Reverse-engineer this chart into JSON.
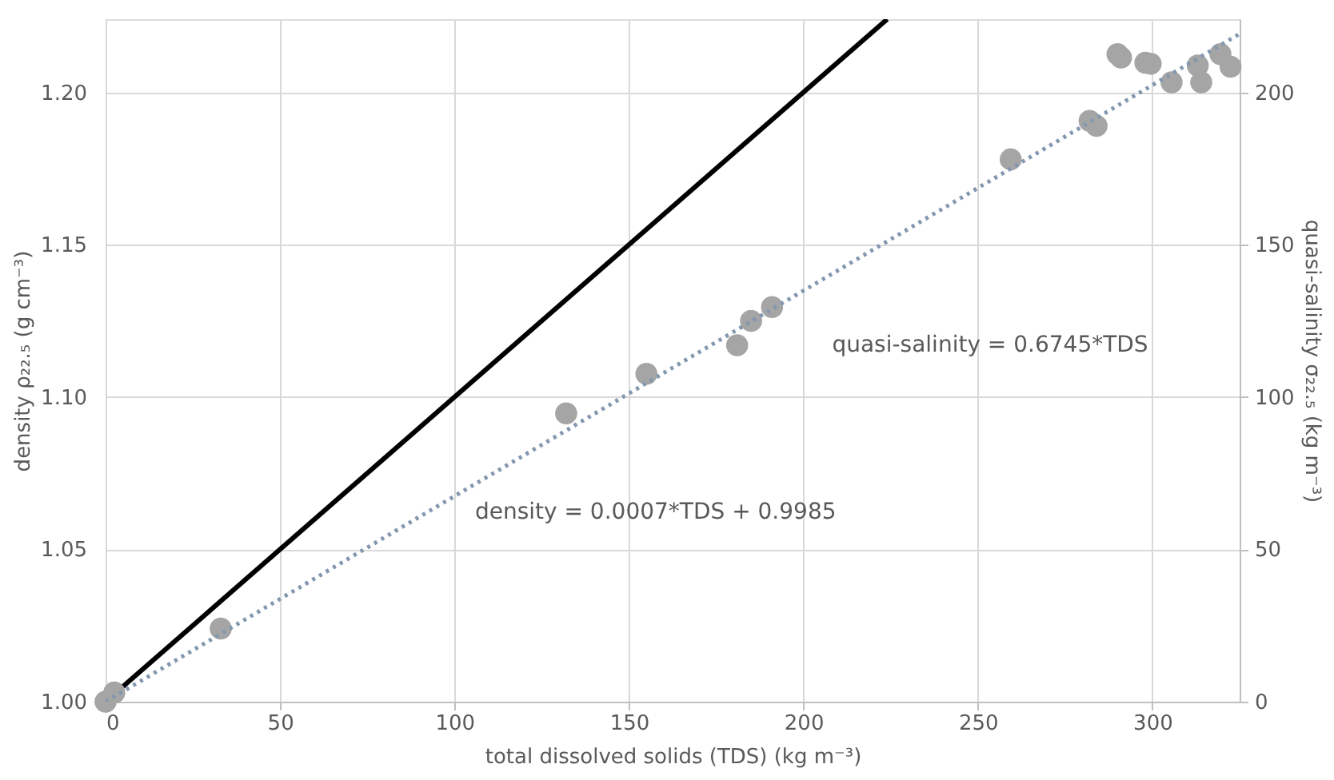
{
  "chart_data": {
    "type": "scatter",
    "xlabel": "total dissolved solids (TDS) (kg m⁻³)",
    "ylabel": "density ρ₂₂.₅ (g cm⁻³)",
    "y2label": "quasi-salinity σ₂₂.₅ (kg m⁻³)",
    "xlim": [
      0,
      325
    ],
    "xticks": [
      0,
      50,
      100,
      150,
      200,
      250,
      300
    ],
    "ylim": [
      1.0,
      1.224
    ],
    "yticks": [
      {
        "value": 1.0,
        "label": "1.00"
      },
      1.05,
      {
        "value": 1.1,
        "label": "1.10"
      },
      1.15,
      {
        "value": 1.2,
        "label": "1.20"
      }
    ],
    "y2lim": [
      0,
      224
    ],
    "y2ticks": [
      0,
      50,
      100,
      150,
      200
    ],
    "grid": true,
    "series": [
      {
        "type": "line",
        "color": "#000000",
        "line_style": "solid",
        "marker": "none",
        "x": [
          0,
          224
        ],
        "values": [
          1.0,
          1.224
        ]
      },
      {
        "type": "line",
        "axis": "y2",
        "color": "#8497b0",
        "line_style": "dotted",
        "marker": "none",
        "x": [
          0,
          325
        ],
        "values": [
          0,
          219.2
        ]
      },
      {
        "color": "#a5a5a5",
        "marker": "circle",
        "x": [
          0,
          2.5,
          33,
          132,
          155,
          181,
          185,
          191,
          259.4,
          282,
          284,
          290,
          291,
          298,
          299.5,
          305.5,
          313,
          314,
          319.5,
          322.4
        ],
        "values": [
          1.0,
          1.003,
          1.024,
          1.0946,
          1.1076,
          1.117,
          1.125,
          1.1295,
          1.178,
          1.1906,
          1.189,
          1.2125,
          1.2114,
          1.2097,
          1.2094,
          1.2033,
          1.2088,
          1.2033,
          1.2125,
          1.2084
        ]
      }
    ],
    "annotations": [
      "density = 0.0007*TDS + 0.9985",
      "quasi-salinity = 0.6745*TDS"
    ]
  }
}
